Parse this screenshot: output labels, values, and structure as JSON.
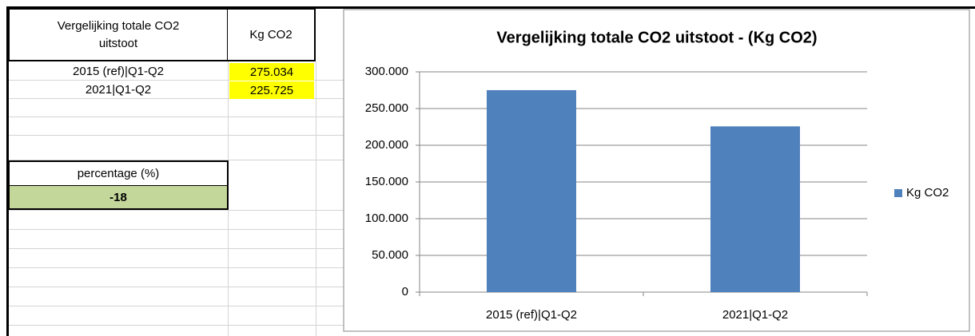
{
  "table": {
    "header": [
      "Vergelijking totale CO2 uitstoot",
      "Kg CO2"
    ],
    "rows": [
      [
        "2015 (ref)|Q1-Q2",
        "275.034"
      ],
      [
        "2021|Q1-Q2",
        "225.725"
      ]
    ],
    "percentage": {
      "label": "percentage (%)",
      "value": "-18"
    }
  },
  "chart_data": {
    "type": "bar",
    "title": "Vergelijking totale CO2 uitstoot -  (Kg CO2)",
    "categories": [
      "2015 (ref)|Q1-Q2",
      "2021|Q1-Q2"
    ],
    "series": [
      {
        "name": "Kg CO2",
        "color": "#4f81bd",
        "values": [
          275034,
          225725
        ]
      }
    ],
    "ylim": [
      0,
      300000
    ],
    "yticks": [
      0,
      {
        "value": 50000,
        "label": "50.000"
      },
      {
        "value": 100000,
        "label": "100.000"
      },
      {
        "value": 150000,
        "label": "150.000"
      },
      {
        "value": 200000,
        "label": "200.000"
      },
      {
        "value": 250000,
        "label": "250.000"
      },
      {
        "value": 300000,
        "label": "300.000"
      }
    ],
    "grid": true,
    "legend": "right"
  }
}
